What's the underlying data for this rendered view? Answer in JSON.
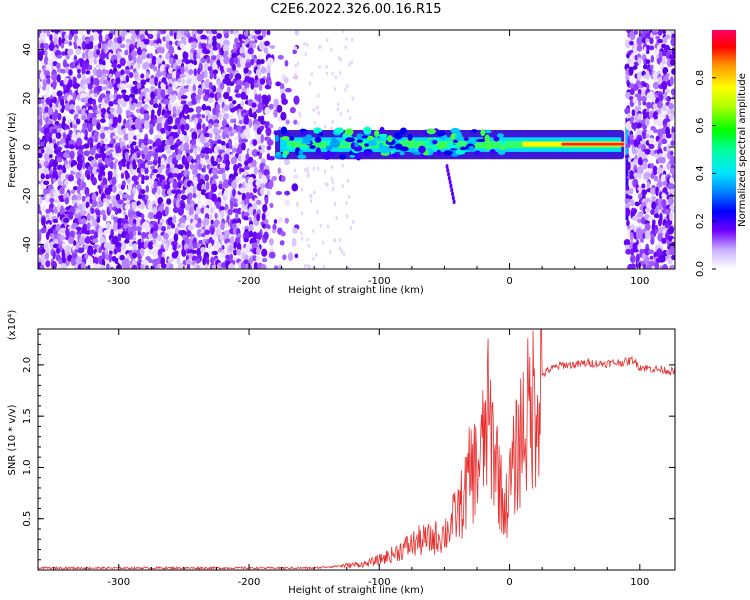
{
  "title": "C2E6.2022.326.00.16.R15",
  "chart_data": [
    {
      "type": "heatmap",
      "xlabel": "Height of straight line (km)",
      "ylabel": "Frequency (Hz)",
      "xlim": [
        -362,
        127
      ],
      "ylim": [
        -50,
        48
      ],
      "xticks": [
        -300,
        -200,
        -100,
        0,
        100
      ],
      "yticks": [
        -40,
        -20,
        0,
        20,
        40
      ],
      "colorbar": {
        "label": "Normalized spectral amplitude",
        "range": [
          0,
          1
        ],
        "ticks": [
          "0.0",
          "0.2",
          "0.4",
          "0.6",
          "0.8"
        ],
        "colors": [
          "#ffffff",
          "#dcc7ff",
          "#8a2be2",
          "#5a00ff",
          "#0000ff",
          "#00bfff",
          "#00ffcc",
          "#00ff00",
          "#aaff00",
          "#ffff00",
          "#ff9900",
          "#ff0000",
          "#ff0066"
        ]
      },
      "regions": [
        {
          "x": [
            -362,
            -165
          ],
          "freq": [
            -50,
            48
          ],
          "description": "broadband noise"
        },
        {
          "x": [
            -180,
            88
          ],
          "freq": [
            -5,
            7
          ],
          "description": "narrow carrier band near 0 Hz, strongest from 40 to 88 km"
        },
        {
          "x": [
            90,
            127
          ],
          "freq": [
            -50,
            48
          ],
          "description": "broadband noise"
        }
      ]
    },
    {
      "type": "line",
      "xlabel": "Height of straight line (km)",
      "ylabel": "SNR (10 * v/v)",
      "y_scale_label": "(x10⁴)",
      "xlim": [
        -362,
        127
      ],
      "ylim": [
        0,
        2.35
      ],
      "xticks": [
        -300,
        -200,
        -100,
        0,
        100
      ],
      "yticks": [
        0.5,
        1.0,
        1.5,
        2.0
      ],
      "ytick_labels": [
        "0.5",
        "1.0",
        "1.5",
        "2.0"
      ],
      "color": "#e83030",
      "series": [
        {
          "x": [
            -362,
            -300,
            -250,
            -200,
            -150,
            -130,
            -110,
            -100,
            -90,
            -80,
            -70,
            -60,
            -50,
            -45,
            -40,
            -35,
            -30,
            -25,
            -20,
            -17,
            -14,
            -10,
            -6,
            -3,
            0,
            5,
            10,
            15,
            20,
            25,
            30,
            40,
            50,
            60,
            70,
            80,
            90,
            95,
            100,
            110,
            120,
            127
          ],
          "y": [
            0.02,
            0.02,
            0.02,
            0.02,
            0.02,
            0.04,
            0.06,
            0.1,
            0.15,
            0.22,
            0.28,
            0.3,
            0.35,
            0.45,
            0.55,
            0.7,
            0.95,
            1.0,
            1.2,
            1.5,
            1.3,
            1.1,
            0.7,
            0.6,
            0.8,
            1.1,
            1.4,
            1.5,
            1.7,
            1.9,
            1.95,
            2.0,
            2.0,
            2.02,
            2.01,
            2.02,
            2.03,
            2.05,
            1.98,
            1.96,
            1.95,
            1.93
          ]
        }
      ]
    }
  ]
}
